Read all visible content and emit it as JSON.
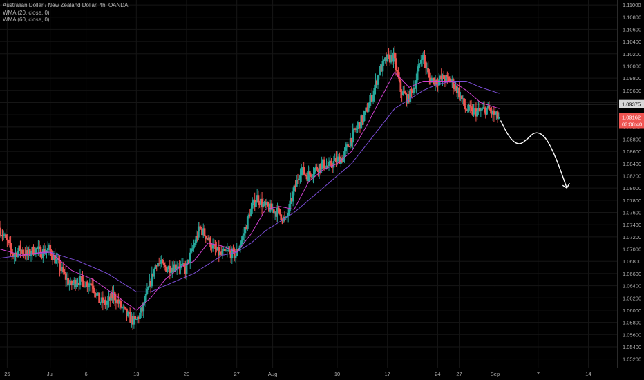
{
  "legend": {
    "title": "Australian Dollar / New Zealand Dollar, 4h, OANDA",
    "indicator_1": "WMA (20, close, 0)",
    "indicator_2": "WMA (60, close, 0)"
  },
  "price_axis": {
    "ticks": [
      "1.11000",
      "1.10800",
      "1.10600",
      "1.10400",
      "1.10200",
      "1.10000",
      "1.09800",
      "1.09600",
      "1.09400",
      "1.09200",
      "1.09000",
      "1.08800",
      "1.08600",
      "1.08400",
      "1.08200",
      "1.08000",
      "1.07800",
      "1.07600",
      "1.07400",
      "1.07200",
      "1.07000",
      "1.06800",
      "1.06600",
      "1.06400",
      "1.06200",
      "1.06000",
      "1.05800",
      "1.05600",
      "1.05400",
      "1.05200"
    ],
    "levels": [
      1.11,
      1.108,
      1.106,
      1.104,
      1.102,
      1.1,
      1.098,
      1.096,
      1.094,
      1.092,
      1.09,
      1.088,
      1.086,
      1.084,
      1.082,
      1.08,
      1.078,
      1.076,
      1.074,
      1.072,
      1.07,
      1.068,
      1.066,
      1.064,
      1.062,
      1.06,
      1.058,
      1.056,
      1.054,
      1.052
    ],
    "range": [
      1.0506,
      1.1108
    ],
    "horizontal_line_label": "1.09375",
    "horizontal_line_value": 1.09375,
    "current_price_label": "1.09162",
    "current_price_value": 1.09162,
    "countdown_label": "03:08:40"
  },
  "time_axis": {
    "labels": [
      "25",
      "Jul",
      "6",
      "13",
      "20",
      "27",
      "Aug",
      "10",
      "17",
      "24",
      "27",
      "Sep",
      "7",
      "14"
    ],
    "days": [
      -6,
      0,
      5,
      12,
      19,
      26,
      31,
      40,
      47,
      54,
      57,
      62,
      68,
      75
    ],
    "range": [
      -7,
      79
    ]
  },
  "chart_data": {
    "type": "candlestick",
    "title": "Australian Dollar / New Zealand Dollar, 4h, OANDA",
    "colors": {
      "up": "#26a69a",
      "down": "#ef5350",
      "wma20": "#d040d0",
      "wma60": "#7b4dd6",
      "drawing": "#ffffff",
      "price_label": "#ef5350"
    },
    "candle_day_interval": 0.1667,
    "key_points": [
      [
        -7,
        1.0735
      ],
      [
        -6,
        1.0715
      ],
      [
        -5,
        1.069
      ],
      [
        -4,
        1.07
      ],
      [
        -3,
        1.069
      ],
      [
        -2,
        1.07
      ],
      [
        -1,
        1.0695
      ],
      [
        0,
        1.07
      ],
      [
        1,
        1.068
      ],
      [
        2,
        1.066
      ],
      [
        3,
        1.064
      ],
      [
        4,
        1.065
      ],
      [
        5,
        1.0645
      ],
      [
        6,
        1.0645
      ],
      [
        7,
        1.0615
      ],
      [
        8,
        1.061
      ],
      [
        9,
        1.0625
      ],
      [
        10,
        1.0605
      ],
      [
        11,
        1.059
      ],
      [
        12,
        1.058
      ],
      [
        13,
        1.06
      ],
      [
        14,
        1.064
      ],
      [
        15,
        1.068
      ],
      [
        16,
        1.067
      ],
      [
        17,
        1.067
      ],
      [
        18,
        1.0675
      ],
      [
        19,
        1.0665
      ],
      [
        20,
        1.07
      ],
      [
        21,
        1.0735
      ],
      [
        22,
        1.072
      ],
      [
        23,
        1.07
      ],
      [
        24,
        1.069
      ],
      [
        25,
        1.0695
      ],
      [
        26,
        1.069
      ],
      [
        27,
        1.072
      ],
      [
        28,
        1.076
      ],
      [
        29,
        1.0785
      ],
      [
        30,
        1.077
      ],
      [
        31,
        1.0765
      ],
      [
        32,
        1.076
      ],
      [
        33,
        1.0745
      ],
      [
        34,
        1.079
      ],
      [
        35,
        1.083
      ],
      [
        36,
        1.082
      ],
      [
        37,
        1.083
      ],
      [
        38,
        1.084
      ],
      [
        39,
        1.0835
      ],
      [
        40,
        1.0845
      ],
      [
        41,
        1.085
      ],
      [
        42,
        1.088
      ],
      [
        43,
        1.09
      ],
      [
        44,
        1.092
      ],
      [
        45,
        1.095
      ],
      [
        46,
        1.099
      ],
      [
        47,
        1.101
      ],
      [
        48,
        1.1015
      ],
      [
        49,
        1.096
      ],
      [
        50,
        1.0945
      ],
      [
        51,
        1.097
      ],
      [
        52,
        1.102
      ],
      [
        53,
        1.098
      ],
      [
        54,
        1.0975
      ],
      [
        55,
        1.098
      ],
      [
        56,
        1.0975
      ],
      [
        57,
        1.096
      ],
      [
        58,
        1.093
      ],
      [
        59,
        1.0925
      ],
      [
        60,
        1.0925
      ],
      [
        61,
        1.093
      ],
      [
        62,
        1.092
      ],
      [
        62.6,
        1.0915
      ]
    ],
    "wma_20_points": [
      [
        -7,
        1.07
      ],
      [
        -4,
        1.069
      ],
      [
        -1,
        1.0695
      ],
      [
        0,
        1.0695
      ],
      [
        3,
        1.0665
      ],
      [
        6,
        1.065
      ],
      [
        9,
        1.0625
      ],
      [
        12,
        1.06
      ],
      [
        14,
        1.062
      ],
      [
        16,
        1.065
      ],
      [
        18,
        1.067
      ],
      [
        20,
        1.068
      ],
      [
        22,
        1.071
      ],
      [
        24,
        1.0705
      ],
      [
        26,
        1.0695
      ],
      [
        28,
        1.0725
      ],
      [
        30,
        1.0765
      ],
      [
        32,
        1.077
      ],
      [
        34,
        1.0765
      ],
      [
        36,
        1.081
      ],
      [
        38,
        1.083
      ],
      [
        40,
        1.084
      ],
      [
        42,
        1.086
      ],
      [
        44,
        1.09
      ],
      [
        46,
        1.0945
      ],
      [
        48,
        1.099
      ],
      [
        50,
        1.0965
      ],
      [
        52,
        1.0975
      ],
      [
        54,
        1.0975
      ],
      [
        56,
        1.0975
      ],
      [
        58,
        1.096
      ],
      [
        60,
        1.094
      ],
      [
        62.6,
        1.093
      ]
    ],
    "wma_60_points": [
      [
        -7,
        1.0685
      ],
      [
        -4,
        1.069
      ],
      [
        0,
        1.0695
      ],
      [
        4,
        1.068
      ],
      [
        8,
        1.066
      ],
      [
        12,
        1.063
      ],
      [
        14,
        1.063
      ],
      [
        18,
        1.065
      ],
      [
        20,
        1.066
      ],
      [
        22,
        1.0675
      ],
      [
        24,
        1.069
      ],
      [
        26,
        1.0695
      ],
      [
        28,
        1.071
      ],
      [
        30,
        1.073
      ],
      [
        32,
        1.0745
      ],
      [
        34,
        1.076
      ],
      [
        36,
        1.078
      ],
      [
        38,
        1.08
      ],
      [
        40,
        1.082
      ],
      [
        42,
        1.084
      ],
      [
        44,
        1.087
      ],
      [
        46,
        1.09
      ],
      [
        48,
        1.093
      ],
      [
        50,
        1.0945
      ],
      [
        52,
        1.096
      ],
      [
        54,
        1.097
      ],
      [
        56,
        1.0975
      ],
      [
        58,
        1.0975
      ],
      [
        60,
        1.0965
      ],
      [
        62.6,
        1.0955
      ]
    ],
    "projection_arrow_points": [
      [
        62.8,
        1.091
      ],
      [
        64,
        1.0882
      ],
      [
        65.3,
        1.087
      ],
      [
        66.5,
        1.088
      ],
      [
        67.6,
        1.0893
      ],
      [
        69,
        1.0885
      ],
      [
        70.5,
        1.085
      ],
      [
        72,
        1.08
      ]
    ]
  }
}
